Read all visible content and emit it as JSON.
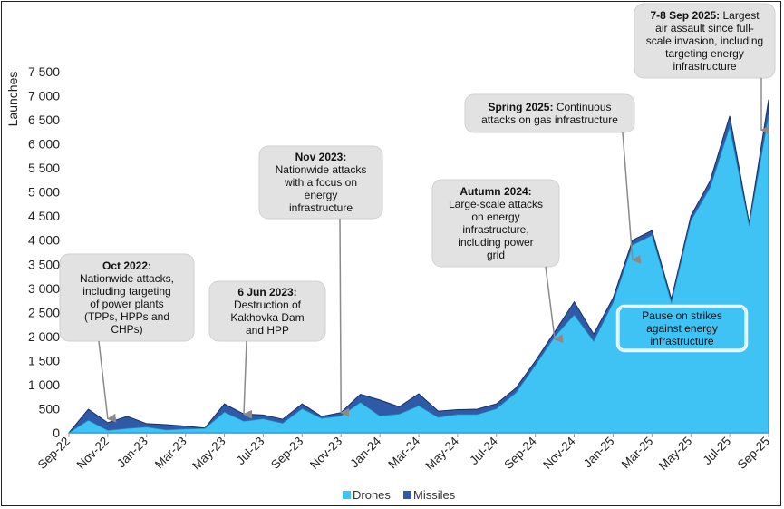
{
  "chart_data": {
    "type": "area",
    "ylabel": "Launches",
    "ylim": [
      0,
      7500
    ],
    "yticks": [
      0,
      500,
      1000,
      1500,
      2000,
      2500,
      3000,
      3500,
      4000,
      4500,
      5000,
      5500,
      6000,
      6500,
      7000,
      7500
    ],
    "ytick_labels": [
      "0",
      "500",
      "1 000",
      "1 500",
      "2 000",
      "2 500",
      "3 000",
      "3 500",
      "4 000",
      "4 500",
      "5 000",
      "5 500",
      "6 000",
      "6 500",
      "7 000",
      "7 500"
    ],
    "x": [
      "2022-09",
      "2022-10",
      "2022-11",
      "2022-12",
      "2023-01",
      "2023-02",
      "2023-03",
      "2023-04",
      "2023-05",
      "2023-06",
      "2023-07",
      "2023-08",
      "2023-09",
      "2023-10",
      "2023-11",
      "2023-12",
      "2024-01",
      "2024-02",
      "2024-03",
      "2024-04",
      "2024-05",
      "2024-06",
      "2024-07",
      "2024-08",
      "2024-09",
      "2024-10",
      "2024-11",
      "2024-12",
      "2025-01",
      "2025-02",
      "2025-03",
      "2025-04",
      "2025-05",
      "2025-06",
      "2025-07",
      "2025-08",
      "2025-09"
    ],
    "xtick_labels": [
      "Sep-22",
      "Nov-22",
      "Jan-23",
      "Mar-23",
      "May-23",
      "Jul-23",
      "Sep-23",
      "Nov-23",
      "Jan-24",
      "Mar-24",
      "May-24",
      "Jul-24",
      "Sep-24",
      "Nov-24",
      "Jan-25",
      "Mar-25",
      "May-25",
      "Jul-25",
      "Sep-25"
    ],
    "series": [
      {
        "name": "Drones",
        "color": "#3FC3F5",
        "values": [
          0,
          260,
          50,
          90,
          120,
          60,
          80,
          90,
          430,
          240,
          290,
          200,
          500,
          300,
          350,
          630,
          350,
          390,
          560,
          320,
          380,
          380,
          500,
          830,
          1400,
          2000,
          2450,
          1900,
          2700,
          3900,
          4100,
          2700,
          4400,
          5100,
          6350,
          4300,
          6600
        ]
      },
      {
        "name": "Missiles",
        "color": "#2E5AA8",
        "values": [
          0,
          230,
          160,
          250,
          70,
          110,
          60,
          10,
          170,
          150,
          80,
          80,
          100,
          40,
          70,
          170,
          330,
          150,
          250,
          130,
          100,
          110,
          100,
          100,
          90,
          100,
          270,
          150,
          100,
          100,
          100,
          80,
          100,
          140,
          230,
          60,
          320
        ]
      }
    ],
    "legend": {
      "placement": "bottom-center",
      "entries": [
        "Drones",
        "Missiles"
      ]
    },
    "annotations": [
      {
        "bold": "Oct 2022:",
        "lines": [
          "Nationwide attacks,",
          "including targeting",
          "of power plants",
          "(TPPs, HPPs and",
          "CHPs)"
        ],
        "x": "2022-11",
        "arrow_y": 250
      },
      {
        "bold": "6 Jun 2023:",
        "lines": [
          "Destruction of",
          "Kakhovka Dam",
          "and HPP"
        ],
        "x": "2023-06",
        "arrow_y": 350
      },
      {
        "bold": "Nov 2023:",
        "lines": [
          "Nationwide attacks",
          "with a focus on",
          "energy",
          "infrastructure"
        ],
        "x": "2023-11",
        "arrow_y": 380
      },
      {
        "bold": "Autumn 2024:",
        "lines": [
          "Large-scale attacks",
          "on energy",
          "infrastructure,",
          "including power",
          "grid"
        ],
        "x": "2024-10",
        "arrow_y": 1900
      },
      {
        "bold": "Spring 2025:",
        "lines": [
          "Continuous",
          "attacks on gas infrastructure"
        ],
        "x": "2025-02",
        "arrow_y": 3550
      },
      {
        "bold": "7-8 Sep 2025:",
        "lines": [
          "Largest",
          "air assault since full-",
          "scale invasion, including",
          "targeting energy",
          "infrastructure"
        ],
        "x": "2025-09",
        "arrow_y": 6250
      },
      {
        "bold": "",
        "lines": [
          "Pause on strikes",
          "against energy",
          "infrastructure"
        ],
        "style": "outlined"
      }
    ]
  }
}
